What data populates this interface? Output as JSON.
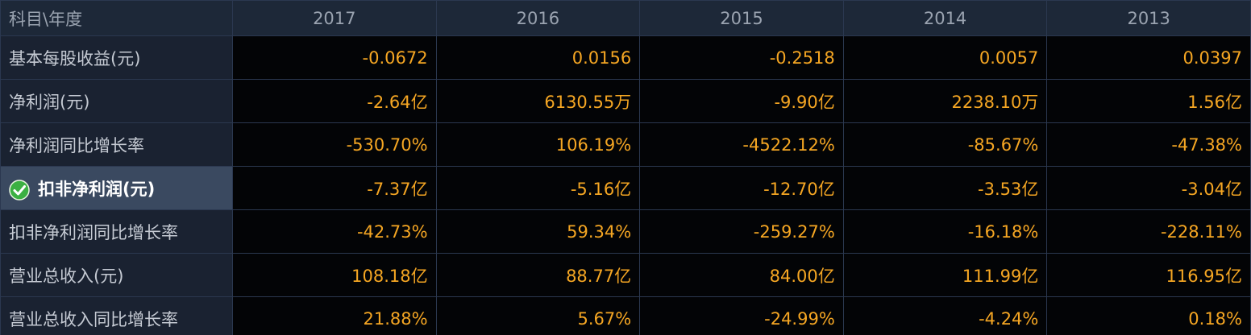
{
  "table": {
    "header": {
      "label": "科目\\年度",
      "years": [
        "2017",
        "2016",
        "2015",
        "2014",
        "2013"
      ]
    },
    "rows": [
      {
        "label": "基本每股收益(元)",
        "values": [
          "-0.0672",
          "0.0156",
          "-0.2518",
          "0.0057",
          "0.0397"
        ]
      },
      {
        "label": "净利润(元)",
        "values": [
          "-2.64亿",
          "6130.55万",
          "-9.90亿",
          "2238.10万",
          "1.56亿"
        ]
      },
      {
        "label": "净利润同比增长率",
        "values": [
          "-530.70%",
          "106.19%",
          "-4522.12%",
          "-85.67%",
          "-47.38%"
        ]
      },
      {
        "label": "扣非净利润(元)",
        "values": [
          "-7.37亿",
          "-5.16亿",
          "-12.70亿",
          "-3.53亿",
          "-3.04亿"
        ]
      },
      {
        "label": "扣非净利润同比增长率",
        "values": [
          "-42.73%",
          "59.34%",
          "-259.27%",
          "-16.18%",
          "-228.11%"
        ]
      },
      {
        "label": "营业总收入(元)",
        "values": [
          "108.18亿",
          "88.77亿",
          "84.00亿",
          "111.99亿",
          "116.95亿"
        ]
      },
      {
        "label": "营业总收入同比增长率",
        "values": [
          "21.88%",
          "5.67%",
          "-24.99%",
          "-4.24%",
          "0.18%"
        ]
      }
    ]
  }
}
